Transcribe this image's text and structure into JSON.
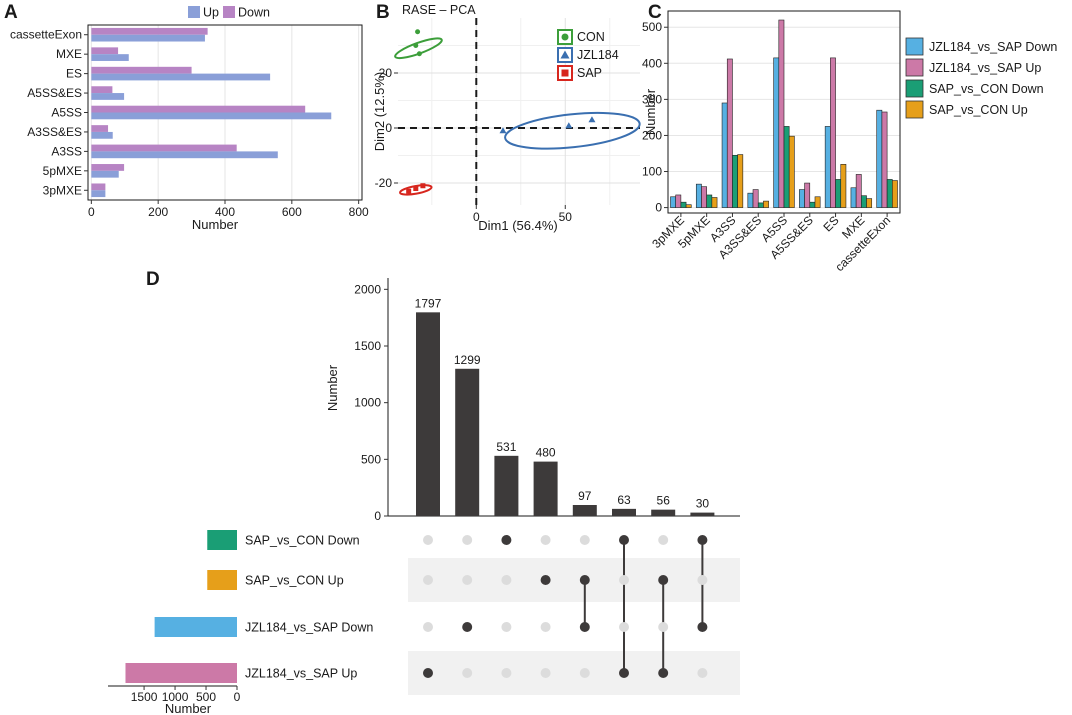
{
  "panels": {
    "A": "A",
    "B": "B",
    "C": "C",
    "D": "D"
  },
  "chart_data": [
    {
      "id": "A",
      "type": "bar",
      "orientation": "horizontal",
      "title": "",
      "xlabel": "Number",
      "ylabel": "",
      "categories": [
        "cassetteExon",
        "MXE",
        "ES",
        "A5SS&ES",
        "A5SS",
        "A3SS&ES",
        "A3SS",
        "5pMXE",
        "3pMXE"
      ],
      "series": [
        {
          "name": "Up",
          "color": "#8A9FD8",
          "values": [
            340,
            112,
            535,
            98,
            718,
            64,
            558,
            82,
            42
          ]
        },
        {
          "name": "Down",
          "color": "#B784C4",
          "values": [
            348,
            80,
            300,
            63,
            640,
            50,
            435,
            98,
            42
          ]
        }
      ],
      "xlim": [
        -10,
        810
      ],
      "xticks": [
        0,
        200,
        400,
        600,
        800
      ],
      "legend": "top"
    },
    {
      "id": "B",
      "type": "scatter",
      "title": "RASE – PCA",
      "xlabel": "Dim1 (56.4%)",
      "ylabel": "Dim2 (12.5%)",
      "xlim": [
        -44,
        92
      ],
      "ylim": [
        -28,
        40
      ],
      "xticks": [
        0,
        50
      ],
      "yticks": [
        -20,
        0,
        20
      ],
      "groups": [
        {
          "name": "CON",
          "color": "#3C9E3A",
          "shape": "circle",
          "points": [
            [
              -34,
              30
            ],
            [
              -32,
              27
            ],
            [
              -33,
              35
            ]
          ],
          "ellipse": {
            "cx": -32.5,
            "cy": 29,
            "rx": 3,
            "ry": 9,
            "angle": -70
          }
        },
        {
          "name": "JZL184",
          "color": "#3A6FB0",
          "shape": "triangle",
          "points": [
            [
              15,
              -1
            ],
            [
              52,
              0.8
            ],
            [
              65,
              3
            ]
          ],
          "ellipse": {
            "cx": 54,
            "cy": -1,
            "rx": 38,
            "ry": 6,
            "angle": 6
          }
        },
        {
          "name": "SAP",
          "color": "#D7261E",
          "shape": "square",
          "points": [
            [
              -38,
              -23
            ],
            [
              -34,
              -22
            ],
            [
              -30,
              -21
            ]
          ],
          "ellipse": {
            "cx": -34,
            "cy": -22.5,
            "rx": 9,
            "ry": 1.4,
            "angle": 10
          }
        }
      ],
      "legend": "top-right"
    },
    {
      "id": "C",
      "type": "bar",
      "orientation": "vertical",
      "title": "",
      "xlabel": "",
      "ylabel": "Number",
      "categories": [
        "3pMXE",
        "5pMXE",
        "A3SS",
        "A3SS&ES",
        "A5SS",
        "A5SS&ES",
        "ES",
        "MXE",
        "cassetteExon"
      ],
      "series": [
        {
          "name": "JZL184_vs_SAP  Down",
          "color": "#56B0E2",
          "values": [
            30,
            65,
            290,
            40,
            415,
            50,
            225,
            55,
            270
          ]
        },
        {
          "name": "JZL184_vs_SAP  Up",
          "color": "#CC79A7",
          "values": [
            35,
            58,
            412,
            50,
            520,
            68,
            415,
            92,
            265
          ]
        },
        {
          "name": "SAP_vs_CON  Down",
          "color": "#1A9E75",
          "values": [
            15,
            35,
            145,
            13,
            225,
            15,
            78,
            33,
            78
          ]
        },
        {
          "name": "SAP_vs_CON  Up",
          "color": "#E69F1A",
          "values": [
            8,
            28,
            147,
            18,
            198,
            30,
            120,
            25,
            75
          ]
        }
      ],
      "ylim": [
        -15,
        545
      ],
      "yticks": [
        0,
        100,
        200,
        300,
        400,
        500
      ],
      "legend": "right"
    },
    {
      "id": "D",
      "type": "upset",
      "ylabel": "Number",
      "set_size_xlabel": "Number",
      "sets": [
        {
          "name": "SAP_vs_CON  Down",
          "size": 480,
          "color": "#1A9E75"
        },
        {
          "name": "SAP_vs_CON  Up",
          "size": 480,
          "color": "#E69F1A"
        },
        {
          "name": "JZL184_vs_SAP  Down",
          "size": 1330,
          "color": "#56B0E2"
        },
        {
          "name": "JZL184_vs_SAP  Up",
          "size": 1800,
          "color": "#CC79A7"
        }
      ],
      "set_size_ticks": [
        1500,
        1000,
        500,
        0
      ],
      "set_size_max": 2050,
      "intersections": [
        {
          "value": 1797,
          "sets": [
            3
          ]
        },
        {
          "value": 1299,
          "sets": [
            2
          ]
        },
        {
          "value": 531,
          "sets": [
            0
          ]
        },
        {
          "value": 480,
          "sets": [
            1
          ]
        },
        {
          "value": 97,
          "sets": [
            1,
            2
          ]
        },
        {
          "value": 63,
          "sets": [
            0,
            3
          ]
        },
        {
          "value": 56,
          "sets": [
            1,
            3
          ]
        },
        {
          "value": 30,
          "sets": [
            0,
            2
          ]
        }
      ],
      "ylim": [
        0,
        2100
      ],
      "yticks": [
        0,
        500,
        1000,
        1500,
        2000
      ]
    }
  ]
}
